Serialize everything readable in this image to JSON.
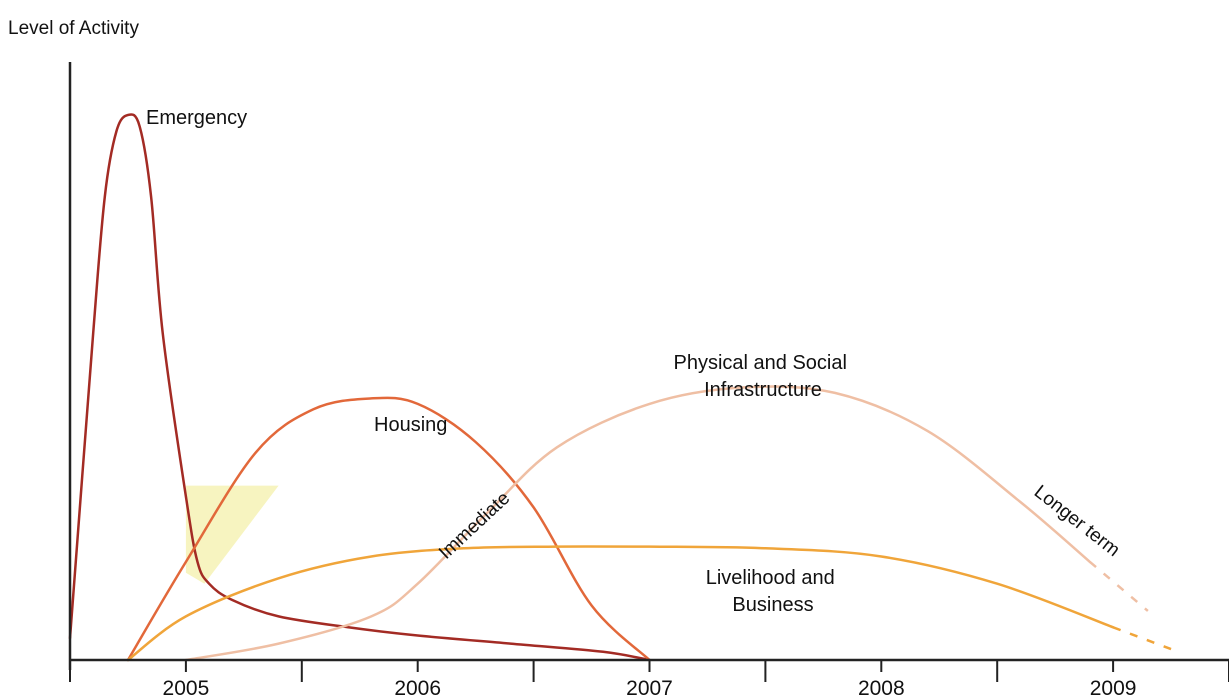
{
  "chart_data": {
    "type": "line",
    "title": "",
    "ylabel": "Level of Activity",
    "xlabel": "",
    "x_ticks": [
      "2005",
      "2006",
      "2007",
      "2008",
      "2009"
    ],
    "xlim": [
      2004.5,
      2009.5
    ],
    "ylim": [
      0,
      100
    ],
    "grid": false,
    "legend": "none",
    "series": [
      {
        "name": "Emergency",
        "color": "#a32b24",
        "x": [
          2004.5,
          2004.6,
          2004.65,
          2004.7,
          2004.75,
          2004.8,
          2004.85,
          2004.9,
          2005.0,
          2005.05,
          2005.1,
          2005.2,
          2005.4,
          2005.7,
          2006.0,
          2006.4,
          2006.8,
          2007.0
        ],
        "y": [
          4,
          60,
          85,
          97,
          100,
          98,
          85,
          60,
          30,
          18,
          14,
          11,
          8,
          6,
          4.5,
          3,
          1.5,
          0
        ]
      },
      {
        "name": "Housing",
        "color": "#e2683a",
        "x": [
          2004.75,
          2005.0,
          2005.3,
          2005.55,
          2005.8,
          2006.0,
          2006.25,
          2006.5,
          2006.75,
          2007.0
        ],
        "y": [
          0,
          18,
          38,
          46,
          48,
          47,
          40,
          28,
          10,
          0
        ]
      },
      {
        "name": "Physical and Social Infrastructure",
        "color": "#efbfa4",
        "x": [
          2005.0,
          2005.4,
          2005.8,
          2006.0,
          2006.3,
          2006.6,
          2007.0,
          2007.4,
          2007.8,
          2008.2,
          2008.6,
          2008.9
        ],
        "y": [
          0,
          3,
          8,
          14,
          27,
          39,
          47,
          50,
          49,
          42,
          29,
          18
        ],
        "projected": {
          "x": [
            2008.9,
            2009.15
          ],
          "y": [
            18,
            9
          ]
        }
      },
      {
        "name": "Livelihood and Business",
        "color": "#f0a53a",
        "x": [
          2004.75,
          2005.0,
          2005.4,
          2005.8,
          2006.2,
          2006.6,
          2007.0,
          2007.5,
          2008.0,
          2008.5,
          2009.0
        ],
        "y": [
          0,
          8,
          15,
          19,
          20.5,
          20.8,
          20.8,
          20.5,
          19,
          14,
          6
        ],
        "projected": {
          "x": [
            2009.0,
            2009.25
          ],
          "y": [
            6,
            2
          ]
        }
      }
    ],
    "annotations": [
      "Immediate",
      "Longer term"
    ],
    "highlight_color": "#f7f4c0"
  }
}
